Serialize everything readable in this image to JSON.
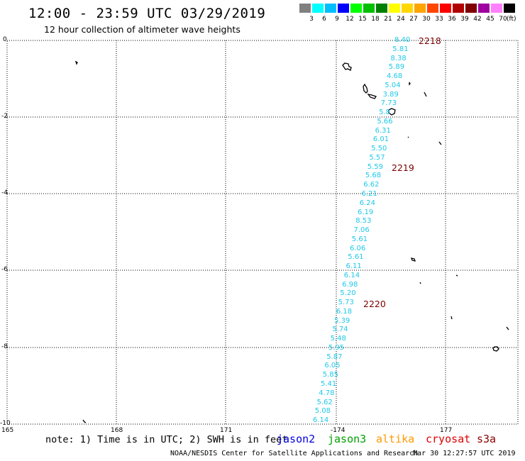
{
  "header": {
    "title": "12:00 - 23:59 UTC 03/29/2019",
    "subtitle": "12 hour collection of altimeter wave heights"
  },
  "colorbar": {
    "unit_label": "(ft)",
    "bins": [
      {
        "label": "3",
        "color": "#808080"
      },
      {
        "label": "6",
        "color": "#00ffff"
      },
      {
        "label": "9",
        "color": "#00bfff"
      },
      {
        "label": "12",
        "color": "#0000ff"
      },
      {
        "label": "15",
        "color": "#00ff00"
      },
      {
        "label": "18",
        "color": "#00c000"
      },
      {
        "label": "21",
        "color": "#008000"
      },
      {
        "label": "24",
        "color": "#ffff00"
      },
      {
        "label": "27",
        "color": "#ffd700"
      },
      {
        "label": "30",
        "color": "#ffa500"
      },
      {
        "label": "33",
        "color": "#ff4500"
      },
      {
        "label": "36",
        "color": "#ff0000"
      },
      {
        "label": "39",
        "color": "#b00000"
      },
      {
        "label": "42",
        "color": "#800000"
      },
      {
        "label": "45",
        "color": "#a000a0"
      },
      {
        "label": "70",
        "color": "#ff80ff"
      },
      {
        "label": "",
        "color": "#000000"
      }
    ]
  },
  "axes": {
    "y_ticks": [
      "0",
      "-2",
      "-4",
      "-6",
      "-8",
      "-10"
    ],
    "x_ticks": [
      "165",
      "168",
      "171",
      "-174",
      "177"
    ]
  },
  "track": {
    "wave_color": "#1fc9e8",
    "wave_heights": [
      "8.40",
      "5.81",
      "8.38",
      "5.89",
      "4.68",
      "5.04",
      "3.89",
      "7.73",
      "5.8",
      "5.66",
      "6.31",
      "6.01",
      "5.50",
      "5.57",
      "5.59",
      "5.68",
      "6.62",
      "6.21",
      "6.24",
      "6.19",
      "8.53",
      "7.06",
      "5.61",
      "6.06",
      "5.61",
      "6.11",
      "6.14",
      "6.98",
      "5.20",
      "5.73",
      "6.18",
      "5.39",
      "5.74",
      "5.48",
      "5.95",
      "5.87",
      "6.05",
      "5.85",
      "5.41",
      "4.78",
      "5.62",
      "5.08",
      "6.14"
    ],
    "time_labels": [
      "2218",
      "2219",
      "2220"
    ]
  },
  "footer": {
    "note": "note: 1) Time is in UTC; 2) SWH is in feet",
    "satellites": [
      {
        "name": "jason2",
        "color": "#0000dd"
      },
      {
        "name": "jason3",
        "color": "#00a000"
      },
      {
        "name": "altika",
        "color": "#ff9900"
      },
      {
        "name": "cryosat",
        "color": "#dd0000"
      },
      {
        "name": "s3a",
        "color": "#8b0000"
      }
    ],
    "credit": "NOAA/NESDIS Center for Satellite Applications and Research",
    "timestamp": "Mar 30 12:27:57 UTC 2019"
  }
}
